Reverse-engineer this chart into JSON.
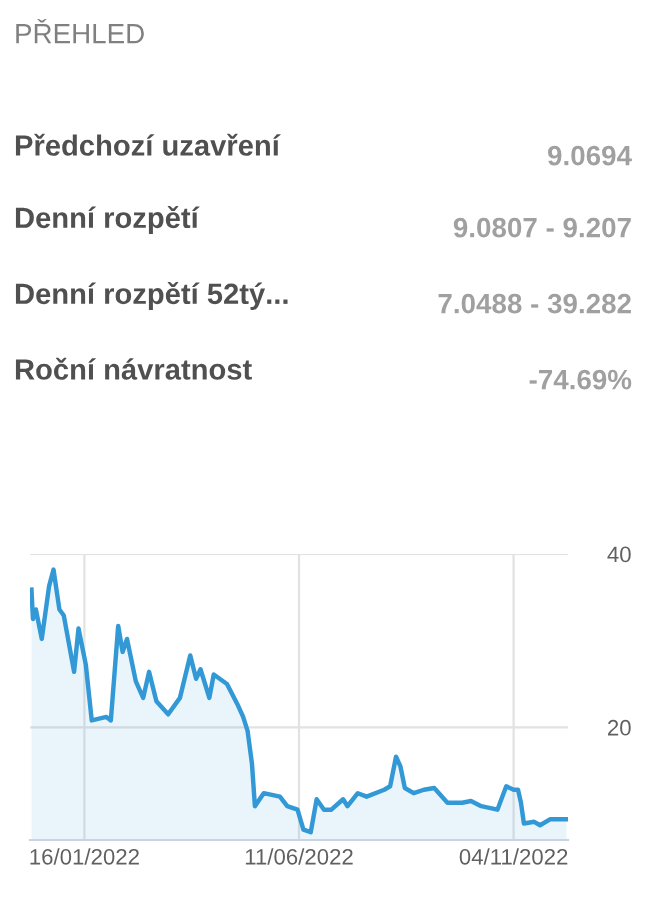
{
  "chart_data": [
    {
      "type": "other",
      "title": "PŘEHLED",
      "annotations": [
        "Předchozí uzavření",
        "9.0694",
        "Denní rozpětí",
        "9.0807 - 9.207",
        "Denní rozpětí 52tý...",
        "7.0488 - 39.282",
        "Roční návratnost",
        "-74.69%"
      ]
    },
    {
      "type": "area",
      "grid": true,
      "legend": false,
      "xlim": [
        "2021-12-10",
        "2022-12-11"
      ],
      "ylim": [
        7,
        40
      ],
      "yticks": [
        20,
        40
      ],
      "xticks": [
        {
          "value": "2022-01-16",
          "label": "16/01/2022"
        },
        {
          "value": "2022-06-11",
          "label": "11/06/2022"
        },
        {
          "value": "2022-11-04",
          "label": "04/11/2022"
        }
      ],
      "x": [
        "2021-12-11",
        "2021-12-12",
        "2021-12-14",
        "2021-12-18",
        "2021-12-23",
        "2021-12-26",
        "2021-12-30",
        "2022-01-02",
        "2022-01-09",
        "2022-01-12",
        "2022-01-17",
        "2022-01-21",
        "2022-01-31",
        "2022-02-03",
        "2022-02-08",
        "2022-02-11",
        "2022-02-14",
        "2022-02-20",
        "2022-02-25",
        "2022-03-01",
        "2022-03-06",
        "2022-03-14",
        "2022-03-22",
        "2022-03-29",
        "2022-04-02",
        "2022-04-05",
        "2022-04-11",
        "2022-04-14",
        "2022-04-23",
        "2022-04-30",
        "2022-05-04",
        "2022-05-07",
        "2022-05-10",
        "2022-05-12",
        "2022-05-18",
        "2022-05-29",
        "2022-06-03",
        "2022-06-10",
        "2022-06-14",
        "2022-06-19",
        "2022-06-23",
        "2022-06-28",
        "2022-07-03",
        "2022-07-11",
        "2022-07-14",
        "2022-07-21",
        "2022-07-27",
        "2022-08-08",
        "2022-08-12",
        "2022-08-16",
        "2022-08-19",
        "2022-08-22",
        "2022-08-28",
        "2022-09-04",
        "2022-09-11",
        "2022-09-20",
        "2022-09-30",
        "2022-10-06",
        "2022-10-13",
        "2022-10-24",
        "2022-10-30",
        "2022-11-04",
        "2022-11-07",
        "2022-11-09",
        "2022-11-11",
        "2022-11-18",
        "2022-11-22",
        "2022-11-29",
        "2022-12-10"
      ],
      "series": [
        {
          "color": "#3399d6",
          "values": [
            35.9,
            32.5,
            33.6,
            30.2,
            36.3,
            38.2,
            33.6,
            32.9,
            26.4,
            31.4,
            27.2,
            20.8,
            21.2,
            20.8,
            31.7,
            28.7,
            30.2,
            25.3,
            23.4,
            26.4,
            23.0,
            21.5,
            23.4,
            28.3,
            25.6,
            26.7,
            23.4,
            26.1,
            25.0,
            22.7,
            21.2,
            19.6,
            15.8,
            10.9,
            12.4,
            12.0,
            10.9,
            10.5,
            8.2,
            7.9,
            11.7,
            10.5,
            10.5,
            11.7,
            10.9,
            12.4,
            12.0,
            12.8,
            13.2,
            16.6,
            15.5,
            13.0,
            12.4,
            12.8,
            13.0,
            11.3,
            11.3,
            11.5,
            10.9,
            10.5,
            13.2,
            12.8,
            12.8,
            11.3,
            8.9,
            9.1,
            8.7,
            9.4,
            9.4
          ]
        }
      ]
    }
  ]
}
